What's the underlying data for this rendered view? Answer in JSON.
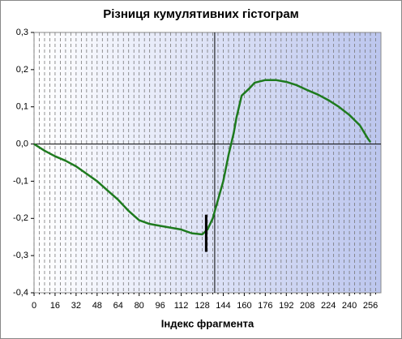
{
  "chart_data": {
    "type": "line",
    "title": "Різниця кумулятивних гістограм",
    "x_label": "Індекс фрагмента",
    "x": [
      0,
      8,
      16,
      24,
      32,
      40,
      48,
      56,
      64,
      72,
      80,
      88,
      96,
      104,
      112,
      120,
      128,
      132,
      136,
      140,
      144,
      148,
      150,
      152,
      154,
      158,
      164,
      168,
      176,
      184,
      192,
      200,
      208,
      216,
      224,
      232,
      240,
      248,
      254,
      256
    ],
    "series": [
      {
        "color": "#1e7a1e",
        "values": [
          0.0,
          -0.018,
          -0.033,
          -0.045,
          -0.06,
          -0.08,
          -0.1,
          -0.125,
          -0.15,
          -0.18,
          -0.205,
          -0.215,
          -0.22,
          -0.225,
          -0.23,
          -0.24,
          -0.243,
          -0.23,
          -0.2,
          -0.15,
          -0.1,
          -0.03,
          0.0,
          0.03,
          0.07,
          0.13,
          0.15,
          0.165,
          0.172,
          0.172,
          0.167,
          0.158,
          0.145,
          0.133,
          0.118,
          0.1,
          0.078,
          0.05,
          0.015,
          0.005
        ]
      }
    ],
    "xlim": [
      0,
      264
    ],
    "xticks": [
      0,
      16,
      32,
      48,
      64,
      80,
      96,
      112,
      128,
      144,
      160,
      176,
      192,
      208,
      224,
      240,
      256
    ],
    "ylim": [
      -0.4,
      0.3
    ],
    "yticks": [
      {
        "value": -0.4,
        "label": "-0,4"
      },
      {
        "value": -0.3,
        "label": "-0,3"
      },
      {
        "value": -0.2,
        "label": "-0,2"
      },
      {
        "value": -0.1,
        "label": "-0,1"
      },
      {
        "value": 0.0,
        "label": "0,0"
      },
      {
        "value": 0.1,
        "label": "0,1"
      },
      {
        "value": 0.2,
        "label": "0,2"
      },
      {
        "value": 0.3,
        "label": "0,3"
      }
    ],
    "grid": true,
    "cursor_x": 137.5,
    "marker": {
      "x": 131,
      "y": [
        -0.19,
        -0.29
      ]
    }
  }
}
